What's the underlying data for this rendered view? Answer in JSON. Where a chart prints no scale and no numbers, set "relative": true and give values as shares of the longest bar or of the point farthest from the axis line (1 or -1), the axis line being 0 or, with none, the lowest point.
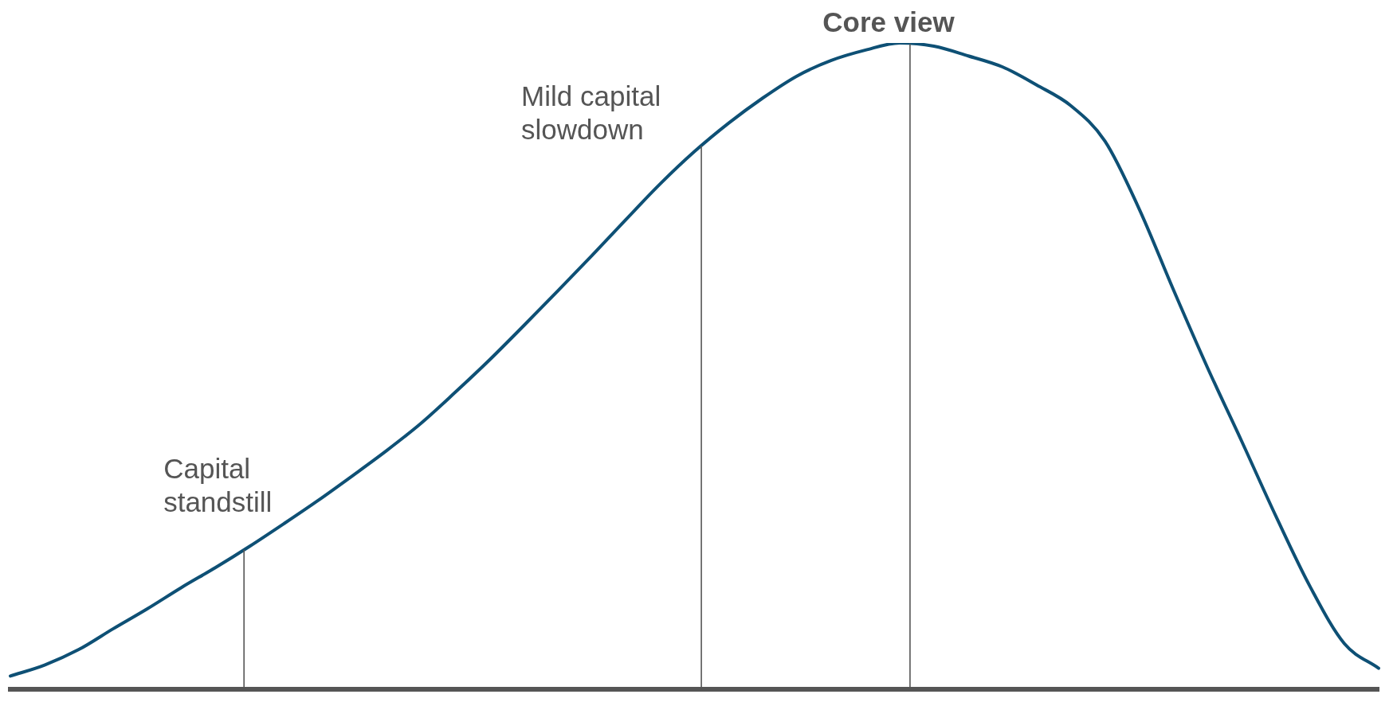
{
  "chart_data": {
    "type": "line",
    "relative": true,
    "legend": false,
    "grid": false,
    "marker": "none",
    "line_style": "solid",
    "categories": [
      null,
      null,
      null,
      null,
      null,
      null,
      null,
      null,
      null,
      null,
      null,
      null,
      null,
      null,
      null,
      null,
      null,
      null,
      null,
      null,
      null,
      null,
      null,
      null,
      null,
      null,
      null,
      null,
      null,
      null,
      null,
      null,
      null,
      null,
      null,
      null,
      null,
      null,
      null,
      null,
      null
    ],
    "series": [
      {
        "color": "#0e5075",
        "values": [
          0.02,
          0.037,
          0.061,
          0.093,
          0.124,
          0.157,
          0.188,
          0.221,
          0.256,
          0.292,
          0.33,
          0.369,
          0.411,
          0.459,
          0.509,
          0.562,
          0.616,
          0.671,
          0.727,
          0.782,
          0.832,
          0.876,
          0.915,
          0.949,
          0.973,
          0.989,
          1.0,
          0.995,
          0.98,
          0.963,
          0.935,
          0.903,
          0.848,
          0.743,
          0.618,
          0.497,
          0.383,
          0.267,
          0.158,
          0.07,
          0.032
        ]
      }
    ],
    "annotations": [
      "Capital standstill",
      "Mild capital slowdown",
      "Core view"
    ]
  }
}
